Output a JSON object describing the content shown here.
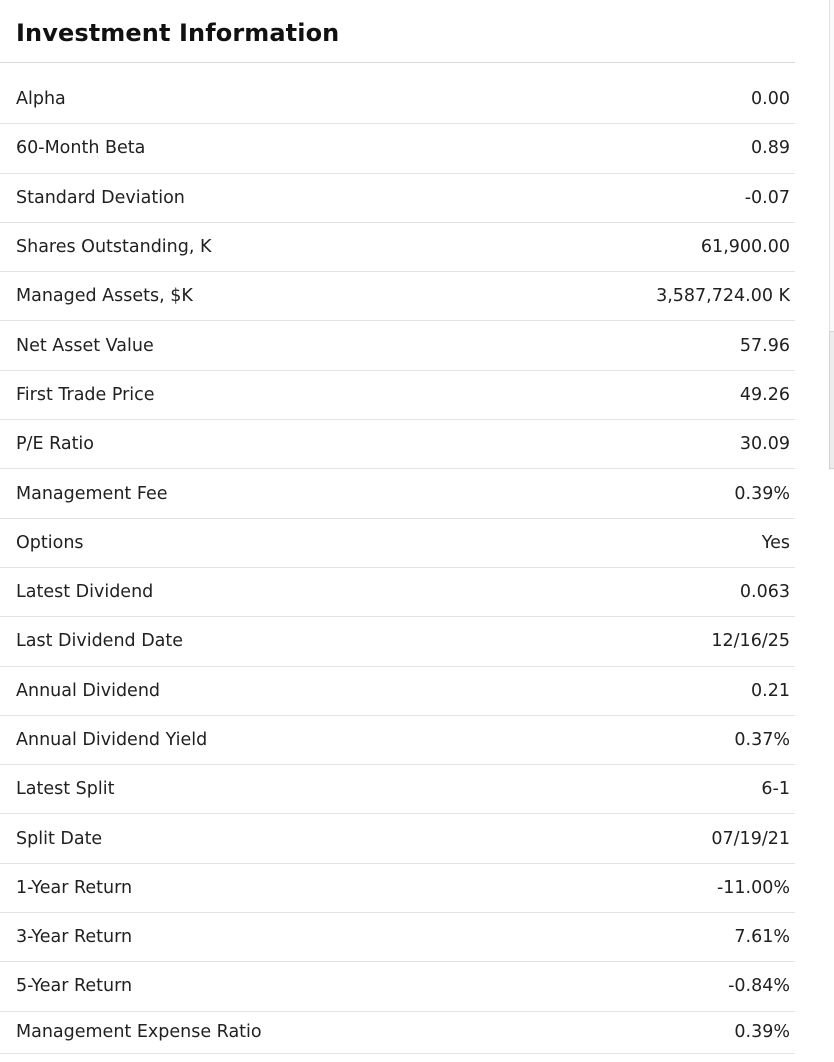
{
  "page": {
    "title": "Investment Information"
  },
  "table": {
    "rows": [
      {
        "label": "Alpha",
        "value": "0.00"
      },
      {
        "label": "60-Month Beta",
        "value": "0.89"
      },
      {
        "label": "Standard Deviation",
        "value": "-0.07"
      },
      {
        "label": "Shares Outstanding, K",
        "value": "61,900.00"
      },
      {
        "label": "Managed Assets, $K",
        "value": "3,587,724.00 K"
      },
      {
        "label": "Net Asset Value",
        "value": "57.96"
      },
      {
        "label": "First Trade Price",
        "value": "49.26"
      },
      {
        "label": "P/E Ratio",
        "value": "30.09"
      },
      {
        "label": "Management Fee",
        "value": "0.39%"
      },
      {
        "label": "Options",
        "value": "Yes"
      },
      {
        "label": "Latest Dividend",
        "value": "0.063"
      },
      {
        "label": "Last Dividend Date",
        "value": "12/16/25"
      },
      {
        "label": "Annual Dividend",
        "value": "0.21"
      },
      {
        "label": "Annual Dividend Yield",
        "value": "0.37%"
      },
      {
        "label": "Latest Split",
        "value": "6-1"
      },
      {
        "label": "Split Date",
        "value": "07/19/21"
      },
      {
        "label": "1-Year Return",
        "value": "-11.00%"
      },
      {
        "label": "3-Year Return",
        "value": "7.61%"
      },
      {
        "label": "5-Year Return",
        "value": "-0.84%"
      },
      {
        "label": "Management Expense Ratio",
        "value": "0.39%"
      }
    ]
  },
  "colors": {
    "text": "#212121",
    "title": "#111111",
    "row_divider": "#e3e3e3",
    "title_divider": "#d9d9d9",
    "scroll_border": "#e3e3e3",
    "scroll_thumb": "#ededed",
    "scroll_thumb_border": "#d4d4d4"
  }
}
